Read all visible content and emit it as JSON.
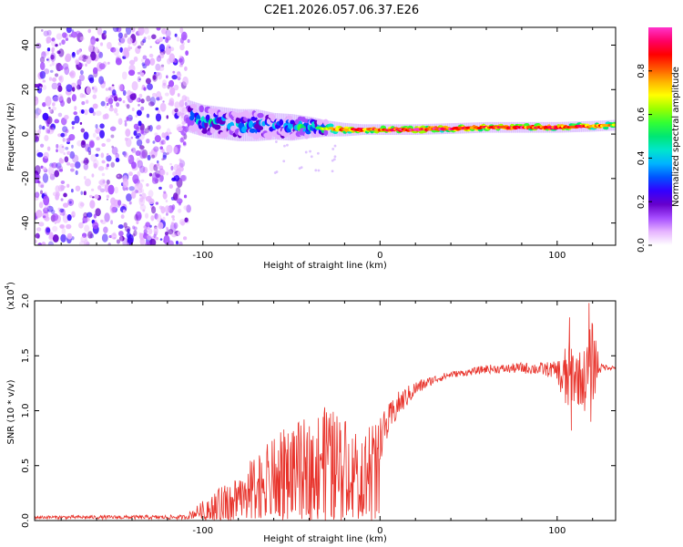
{
  "title": "C2E1.2026.057.06.37.E26",
  "chart_data": [
    {
      "type": "heatmap",
      "name": "spectrogram",
      "xlabel": "Height of straight line (km)",
      "ylabel": "Frequency (Hz)",
      "xlim": [
        -195,
        133
      ],
      "ylim": [
        -50,
        48
      ],
      "xticks": [
        -100,
        0,
        100
      ],
      "yticks": [
        -40,
        -20,
        0,
        20,
        40
      ],
      "colorbar": {
        "label": "Normalized spectral amplitude",
        "range": [
          0,
          1
        ],
        "ticks": [
          0.0,
          0.2,
          0.4,
          0.6,
          0.8
        ],
        "colors": [
          "#ffffff",
          "#e6b3ff",
          "#a64dff",
          "#6600cc",
          "#3300ff",
          "#0055ff",
          "#00b3ff",
          "#00e6cc",
          "#00e673",
          "#33ff33",
          "#99ff00",
          "#ffff00",
          "#ffb300",
          "#ff5500",
          "#ff0000",
          "#ff0066",
          "#ff33cc"
        ]
      },
      "noise_region_x": [
        -195,
        -108
      ],
      "ridge": {
        "x": [
          -108,
          -100,
          -90,
          -80,
          -70,
          -60,
          -50,
          -40,
          -30,
          -20,
          -10,
          0,
          20,
          40,
          60,
          80,
          100,
          120,
          133
        ],
        "freq": [
          8,
          6,
          5,
          4,
          4,
          3.5,
          3,
          3,
          2.5,
          2,
          2,
          2,
          2,
          2.5,
          3,
          3,
          3,
          3.5,
          4
        ],
        "halfwidth": [
          6,
          6,
          6,
          6,
          6,
          5,
          5,
          4,
          3,
          2.5,
          2,
          2,
          2,
          2,
          2,
          2,
          2,
          2,
          2
        ],
        "peak_amplitude": [
          0.5,
          0.55,
          0.55,
          0.5,
          0.5,
          0.5,
          0.55,
          0.6,
          0.75,
          0.9,
          0.95,
          0.9,
          1.0,
          0.95,
          0.9,
          0.95,
          0.95,
          0.9,
          0.7
        ]
      }
    },
    {
      "type": "line",
      "name": "snr",
      "xlabel": "Height of straight line (km)",
      "ylabel": "SNR (10 * v/v)",
      "y_multiplier_label": "(x10",
      "y_multiplier_exp": "4",
      "y_multiplier_close": ")",
      "xlim": [
        -195,
        133
      ],
      "ylim": [
        0,
        20000
      ],
      "xticks": [
        -100,
        0,
        100
      ],
      "yticks": [
        0,
        5000,
        10000,
        15000,
        20000
      ],
      "ytick_labels": [
        "0.0",
        "0.5",
        "1.0",
        "1.5",
        "2.0"
      ],
      "color": "#e8332b",
      "envelope": {
        "x": [
          -195,
          -110,
          -100,
          -90,
          -80,
          -70,
          -60,
          -50,
          -40,
          -30,
          -20,
          -10,
          0,
          10,
          20,
          30,
          40,
          50,
          60,
          70,
          80,
          90,
          100,
          104,
          108,
          112,
          116,
          120,
          125,
          133
        ],
        "mean": [
          300,
          300,
          1000,
          1800,
          2500,
          3500,
          4500,
          5500,
          5500,
          6500,
          6000,
          5000,
          7500,
          10500,
          12000,
          12800,
          13300,
          13500,
          13800,
          13800,
          13900,
          13800,
          13700,
          12500,
          13500,
          13000,
          12800,
          14500,
          14000,
          13900
        ],
        "spread": [
          150,
          200,
          800,
          1200,
          2000,
          2500,
          3000,
          3500,
          3800,
          4000,
          3500,
          3000,
          2000,
          1200,
          700,
          400,
          300,
          300,
          400,
          400,
          500,
          600,
          800,
          3500,
          3000,
          2500,
          3000,
          4000,
          300,
          200
        ]
      },
      "spikes": [
        {
          "x": -43,
          "y": 8000
        },
        {
          "x": -30,
          "y": 9000
        },
        {
          "x": -6,
          "y": 8500
        },
        {
          "x": 107,
          "y": 18500
        },
        {
          "x": 108,
          "y": 8200
        },
        {
          "x": 118,
          "y": 19800
        },
        {
          "x": 119,
          "y": 9000
        }
      ]
    }
  ]
}
